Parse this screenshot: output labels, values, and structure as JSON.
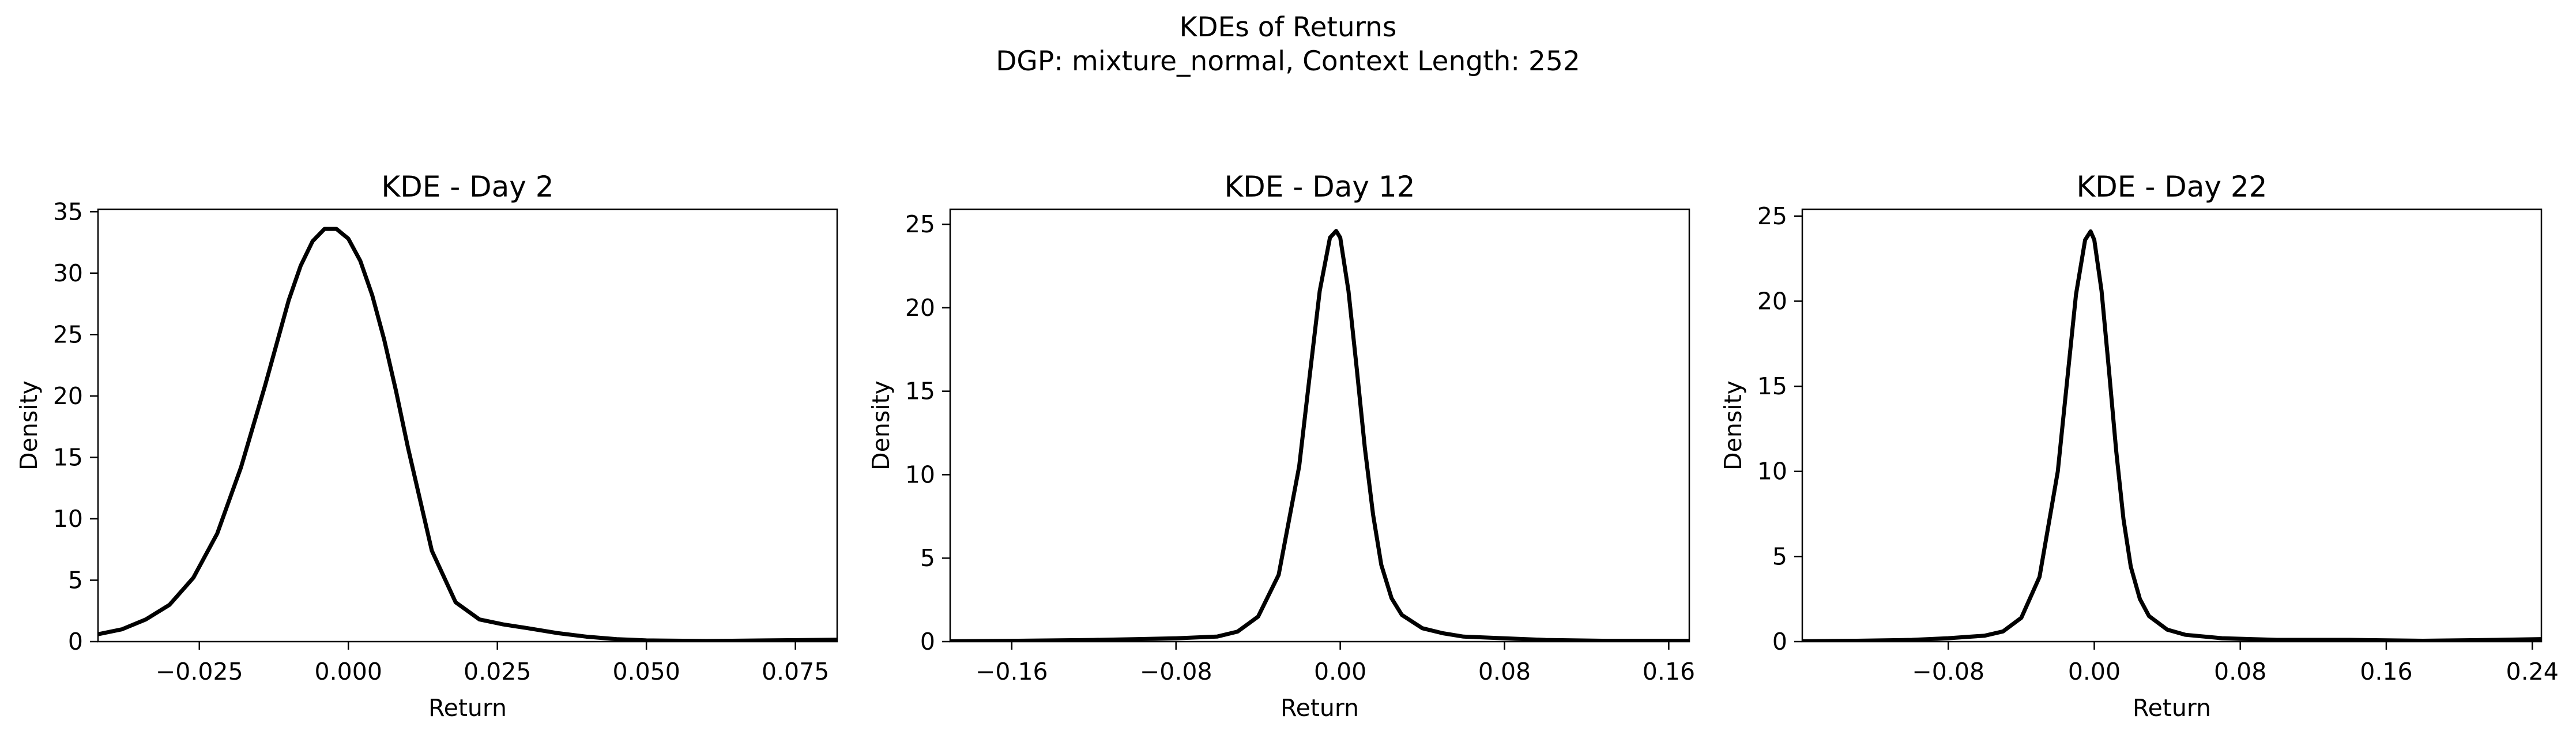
{
  "figure": {
    "title_line1": "KDEs of Returns",
    "title_line2": "DGP: mixture_normal, Context Length: 252"
  },
  "chart_data": [
    {
      "type": "line",
      "title": "KDE - Day 2",
      "xlabel": "Return",
      "ylabel": "Density",
      "xlim": [
        -0.042,
        0.082
      ],
      "ylim": [
        0,
        35.2
      ],
      "xticks": [
        -0.025,
        0.0,
        0.025,
        0.05,
        0.075
      ],
      "xtick_labels": [
        "−0.025",
        "0.000",
        "0.025",
        "0.050",
        "0.075"
      ],
      "yticks": [
        0,
        5,
        10,
        15,
        20,
        25,
        30,
        35
      ],
      "ytick_labels": [
        "0",
        "5",
        "10",
        "15",
        "20",
        "25",
        "30",
        "35"
      ],
      "grid": false,
      "line_color": "#000000",
      "series": [
        {
          "x": [
            -0.042,
            -0.038,
            -0.034,
            -0.03,
            -0.026,
            -0.022,
            -0.018,
            -0.014,
            -0.01,
            -0.008,
            -0.006,
            -0.004,
            -0.002,
            0.0,
            0.002,
            0.004,
            0.006,
            0.008,
            0.01,
            0.014,
            0.018,
            0.022,
            0.026,
            0.03,
            0.035,
            0.04,
            0.045,
            0.05,
            0.06,
            0.07,
            0.082
          ],
          "y": [
            0.6,
            1.0,
            1.8,
            3.0,
            5.2,
            8.8,
            14.2,
            20.8,
            27.8,
            30.6,
            32.6,
            33.6,
            33.6,
            32.8,
            31.0,
            28.2,
            24.6,
            20.4,
            15.8,
            7.4,
            3.2,
            1.8,
            1.4,
            1.1,
            0.7,
            0.4,
            0.2,
            0.1,
            0.05,
            0.1,
            0.15
          ]
        }
      ]
    },
    {
      "type": "line",
      "title": "KDE - Day 12",
      "xlabel": "Return",
      "ylabel": "Density",
      "xlim": [
        -0.19,
        0.17
      ],
      "ylim": [
        0,
        25.9
      ],
      "xticks": [
        -0.16,
        -0.08,
        0.0,
        0.08,
        0.16
      ],
      "xtick_labels": [
        "−0.16",
        "−0.08",
        "0.00",
        "0.08",
        "0.16"
      ],
      "yticks": [
        0,
        5,
        10,
        15,
        20,
        25
      ],
      "ytick_labels": [
        "0",
        "5",
        "10",
        "15",
        "20",
        "25"
      ],
      "grid": false,
      "line_color": "#000000",
      "series": [
        {
          "x": [
            -0.19,
            -0.16,
            -0.12,
            -0.1,
            -0.08,
            -0.06,
            -0.05,
            -0.04,
            -0.03,
            -0.02,
            -0.015,
            -0.01,
            -0.005,
            -0.002,
            0.0,
            0.004,
            0.008,
            0.012,
            0.016,
            0.02,
            0.025,
            0.03,
            0.04,
            0.05,
            0.06,
            0.08,
            0.1,
            0.13,
            0.17
          ],
          "y": [
            0.02,
            0.05,
            0.1,
            0.15,
            0.2,
            0.3,
            0.6,
            1.5,
            4.0,
            10.5,
            15.8,
            21.0,
            24.2,
            24.6,
            24.2,
            21.0,
            16.4,
            11.6,
            7.6,
            4.6,
            2.6,
            1.6,
            0.8,
            0.5,
            0.3,
            0.2,
            0.1,
            0.05,
            0.05
          ]
        }
      ]
    },
    {
      "type": "line",
      "title": "KDE - Day 22",
      "xlabel": "Return",
      "ylabel": "Density",
      "xlim": [
        -0.16,
        0.245
      ],
      "ylim": [
        0,
        25.4
      ],
      "xticks": [
        -0.08,
        0.0,
        0.08,
        0.16,
        0.24
      ],
      "xtick_labels": [
        "−0.08",
        "0.00",
        "0.08",
        "0.16",
        "0.24"
      ],
      "yticks": [
        0,
        5,
        10,
        15,
        20,
        25
      ],
      "ytick_labels": [
        "0",
        "5",
        "10",
        "15",
        "20",
        "25"
      ],
      "grid": false,
      "line_color": "#000000",
      "series": [
        {
          "x": [
            -0.16,
            -0.13,
            -0.1,
            -0.08,
            -0.06,
            -0.05,
            -0.04,
            -0.03,
            -0.02,
            -0.015,
            -0.01,
            -0.005,
            -0.002,
            0.0,
            0.004,
            0.008,
            0.012,
            0.016,
            0.02,
            0.025,
            0.03,
            0.04,
            0.05,
            0.07,
            0.1,
            0.14,
            0.18,
            0.22,
            0.245
          ],
          "y": [
            0.02,
            0.05,
            0.1,
            0.2,
            0.35,
            0.6,
            1.4,
            3.8,
            10.0,
            15.2,
            20.4,
            23.6,
            24.1,
            23.6,
            20.6,
            16.0,
            11.2,
            7.2,
            4.4,
            2.5,
            1.5,
            0.7,
            0.4,
            0.2,
            0.1,
            0.1,
            0.05,
            0.1,
            0.15
          ]
        }
      ]
    }
  ]
}
